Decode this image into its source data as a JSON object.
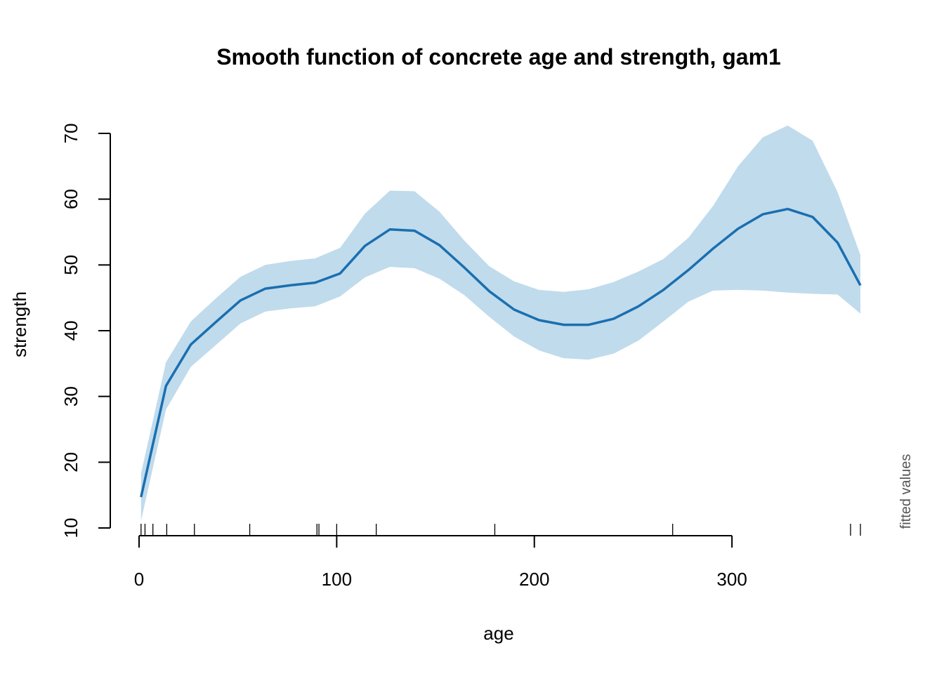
{
  "chart_data": {
    "type": "line",
    "title": "Smooth function of concrete age and strength, gam1",
    "xlabel": "age",
    "ylabel": "strength",
    "side_note": "fitted values",
    "xlim": [
      0,
      365
    ],
    "ylim": [
      10,
      70
    ],
    "x_ticks": [
      0,
      100,
      200,
      300
    ],
    "y_ticks": [
      10,
      20,
      30,
      40,
      50,
      60,
      70
    ],
    "grid": false,
    "legend": "none",
    "colors": {
      "line": "#1a6fb0",
      "band": "#c0dbec"
    },
    "series": [
      {
        "x": [
          1,
          13.6,
          26.2,
          38.8,
          51.3,
          63.9,
          76.5,
          89.1,
          101.7,
          114.3,
          126.9,
          139.4,
          152,
          164.6,
          177.2,
          189.8,
          202.4,
          214.9,
          227.5,
          240.1,
          252.7,
          265.3,
          277.9,
          290.5,
          303.1,
          315.6,
          328.2,
          340.8,
          353.4,
          365
        ],
        "y": [
          14.7,
          31.6,
          37.9,
          41.3,
          44.6,
          46.4,
          46.9,
          47.3,
          48.7,
          52.9,
          55.4,
          55.2,
          53,
          49.6,
          46,
          43.2,
          41.6,
          40.9,
          40.9,
          41.8,
          43.7,
          46.2,
          49.2,
          52.5,
          55.5,
          57.7,
          58.5,
          57.3,
          53.4,
          46.9
        ],
        "upper": [
          18.3,
          35.2,
          41.4,
          44.9,
          48.2,
          50,
          50.6,
          51,
          52.6,
          57.8,
          61.3,
          61.2,
          58.1,
          53.7,
          49.8,
          47.5,
          46.2,
          45.9,
          46.3,
          47.4,
          49,
          50.9,
          54.1,
          59,
          65,
          69.4,
          71.2,
          68.9,
          61.1,
          51.5
        ],
        "lower": [
          11.1,
          28,
          34.5,
          37.8,
          41.1,
          42.9,
          43.4,
          43.7,
          45.2,
          48.1,
          49.7,
          49.5,
          47.9,
          45.4,
          42.1,
          39.1,
          37,
          35.8,
          35.6,
          36.5,
          38.5,
          41.4,
          44.4,
          46.1,
          46.2,
          46.1,
          45.8,
          45.6,
          45.5,
          42.6
        ]
      }
    ],
    "rug": [
      1,
      3,
      7,
      14,
      28,
      56,
      90,
      91,
      100,
      120,
      180,
      270,
      360,
      365
    ]
  }
}
